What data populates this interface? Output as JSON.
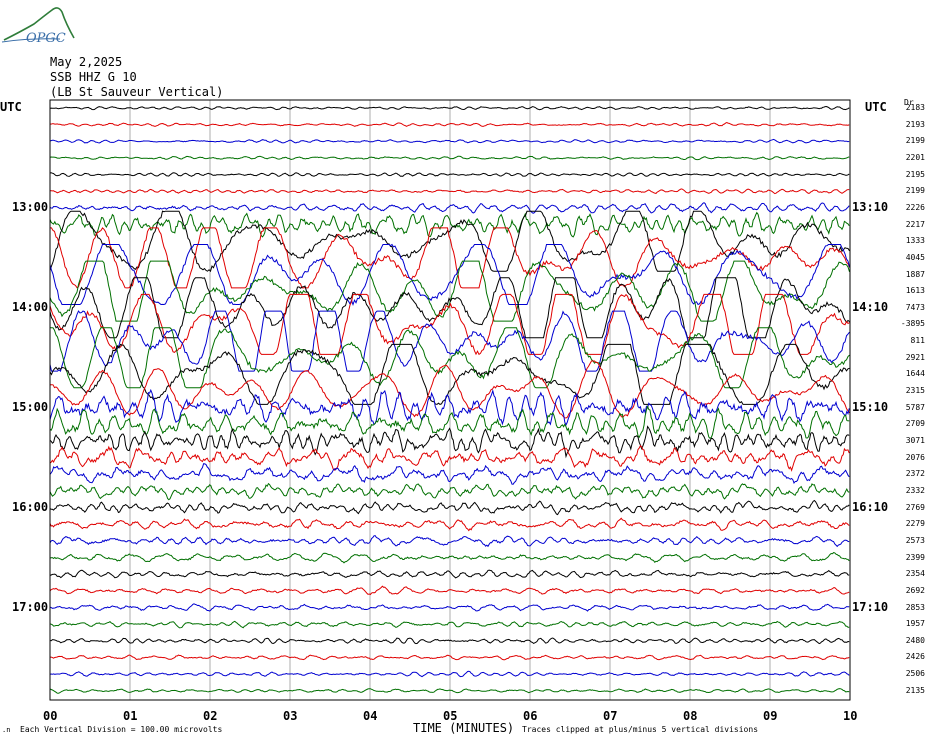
{
  "logo": {
    "text": "OPGC",
    "color": "#3a6ea8",
    "icon": "mountain-logo-icon"
  },
  "header": {
    "date": "May 2,2025",
    "station": "SSB HHZ G 10",
    "location": "(LB  St Sauveur Vertical)"
  },
  "utc_left": "UTC",
  "utc_right": "UTC",
  "dr_label": "Dr",
  "left_times": [
    "13:00",
    "14:00",
    "15:00",
    "16:00",
    "17:00"
  ],
  "right_times": [
    "13:10",
    "14:10",
    "15:10",
    "16:10",
    "17:10"
  ],
  "footer": {
    "division": "Each Vertical Division =  100.00 microvolts",
    "xlabel": "TIME (MINUTES)",
    "clip_note": "Traces clipped at plus/minus 5 vertical divisions"
  },
  "chart_data": {
    "type": "line",
    "title": "SSB HHZ G 10 (LB  St Sauveur Vertical) May 2,2025",
    "xlabel": "TIME (MINUTES)",
    "ylabel": "UTC",
    "xlim": [
      0,
      10
    ],
    "x_ticks": [
      "00",
      "01",
      "02",
      "03",
      "04",
      "05",
      "06",
      "07",
      "08",
      "09",
      "10"
    ],
    "trace_colors": [
      "#000000",
      "#e00000",
      "#0000d0",
      "#007000"
    ],
    "trace_count": 36,
    "dr_values": [
      "2183",
      "2193",
      "2199",
      "2201",
      "2195",
      "2199",
      "2226",
      "2217",
      "1333",
      "4045",
      "1887",
      "1613",
      "7473",
      "-3895",
      "811",
      "2921",
      "1644",
      "2315",
      "5787",
      "2709",
      "3071",
      "2076",
      "2372",
      "2332",
      "2769",
      "2279",
      "2573",
      "2399",
      "2354",
      "2692",
      "2853",
      "1957",
      "2480",
      "2426",
      "2506",
      "2135"
    ],
    "amplitude_divisions": [
      0.15,
      0.15,
      0.15,
      0.15,
      0.15,
      0.2,
      0.4,
      1.0,
      5,
      5,
      5,
      5,
      5,
      5,
      5,
      5,
      5,
      3,
      1.6,
      1.3,
      1.2,
      1.0,
      0.8,
      0.7,
      0.55,
      0.5,
      0.45,
      0.4,
      0.35,
      0.32,
      0.3,
      0.28,
      0.25,
      0.22,
      0.2,
      0.18
    ],
    "clip_divisions": 5,
    "microvolts_per_division": 100.0,
    "grid": true
  }
}
